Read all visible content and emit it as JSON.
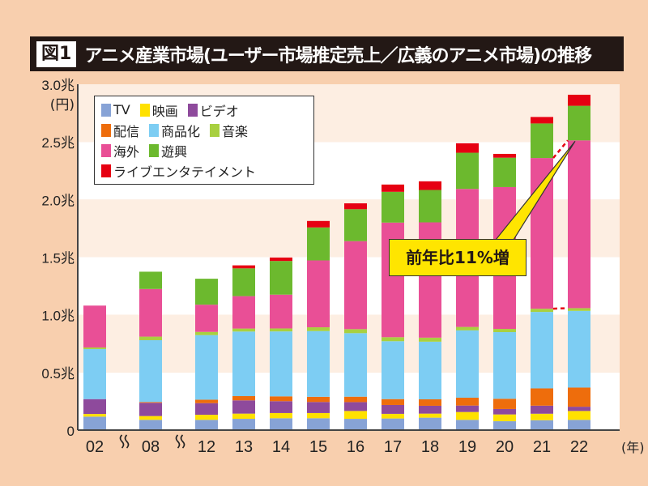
{
  "title": {
    "figure_label": "図1",
    "text": "アニメ産業市場(ユーザー市場推定売上／広義のアニメ市場)の推移"
  },
  "chart_data": {
    "type": "bar",
    "stacked": true,
    "title": "アニメ産業市場(ユーザー市場推定売上／広義のアニメ市場)の推移",
    "ylabel": "(円)",
    "xlabel": "(年)",
    "ylim": [
      0,
      3.0
    ],
    "yticks": [
      {
        "v": 0,
        "label": "0"
      },
      {
        "v": 0.5,
        "label": "0.5兆"
      },
      {
        "v": 1.0,
        "label": "1.0兆"
      },
      {
        "v": 1.5,
        "label": "1.5兆"
      },
      {
        "v": 2.0,
        "label": "2.0兆"
      },
      {
        "v": 2.5,
        "label": "2.5兆"
      },
      {
        "v": 3.0,
        "label": "3.0兆"
      }
    ],
    "categories": [
      "02",
      "08",
      "12",
      "13",
      "14",
      "15",
      "16",
      "17",
      "18",
      "19",
      "20",
      "21",
      "22"
    ],
    "axis_breaks_after": [
      "02",
      "08"
    ],
    "legend_position": "top-left",
    "series": [
      {
        "name": "TV",
        "color": "#87a3d6",
        "values": [
          0.117,
          0.089,
          0.089,
          0.098,
          0.103,
          0.103,
          0.098,
          0.101,
          0.108,
          0.089,
          0.077,
          0.086,
          0.089
        ]
      },
      {
        "name": "映画",
        "color": "#ffe100",
        "values": [
          0.023,
          0.033,
          0.044,
          0.045,
          0.045,
          0.045,
          0.068,
          0.04,
          0.035,
          0.068,
          0.059,
          0.056,
          0.077
        ]
      },
      {
        "name": "ビデオ",
        "color": "#8e4a9c",
        "values": [
          0.129,
          0.115,
          0.101,
          0.115,
          0.103,
          0.096,
          0.077,
          0.077,
          0.068,
          0.056,
          0.047,
          0.07,
          0.037
        ]
      },
      {
        "name": "配信",
        "color": "#ee6d0c",
        "values": [
          0,
          0.007,
          0.03,
          0.037,
          0.042,
          0.045,
          0.047,
          0.051,
          0.056,
          0.068,
          0.089,
          0.15,
          0.166
        ]
      },
      {
        "name": "商品化",
        "color": "#7dcdf3",
        "values": [
          0.434,
          0.536,
          0.56,
          0.56,
          0.563,
          0.57,
          0.551,
          0.502,
          0.5,
          0.584,
          0.578,
          0.663,
          0.665
        ]
      },
      {
        "name": "音楽",
        "color": "#a8d040",
        "values": [
          0.014,
          0.031,
          0.028,
          0.026,
          0.026,
          0.033,
          0.035,
          0.035,
          0.035,
          0.03,
          0.028,
          0.028,
          0.024
        ]
      },
      {
        "name": "海外",
        "color": "#e94f96",
        "values": [
          0.363,
          0.413,
          0.236,
          0.281,
          0.293,
          0.58,
          0.763,
          0.994,
          1.0,
          1.197,
          1.23,
          1.307,
          1.455
        ]
      },
      {
        "name": "遊興",
        "color": "#6cb92e",
        "values": [
          0,
          0.15,
          0.225,
          0.241,
          0.292,
          0.286,
          0.277,
          0.267,
          0.281,
          0.314,
          0.255,
          0.3,
          0.3
        ]
      },
      {
        "name": "ライブエンタテイメント",
        "color": "#e60012",
        "values": [
          0,
          0,
          0,
          0.026,
          0.03,
          0.056,
          0.051,
          0.063,
          0.075,
          0.082,
          0.033,
          0.056,
          0.096
        ]
      }
    ],
    "annotation": {
      "text": "前年比11%増",
      "target": "22",
      "series": "海外",
      "compare": "21"
    },
    "grid": "alternating horizontal bands"
  }
}
